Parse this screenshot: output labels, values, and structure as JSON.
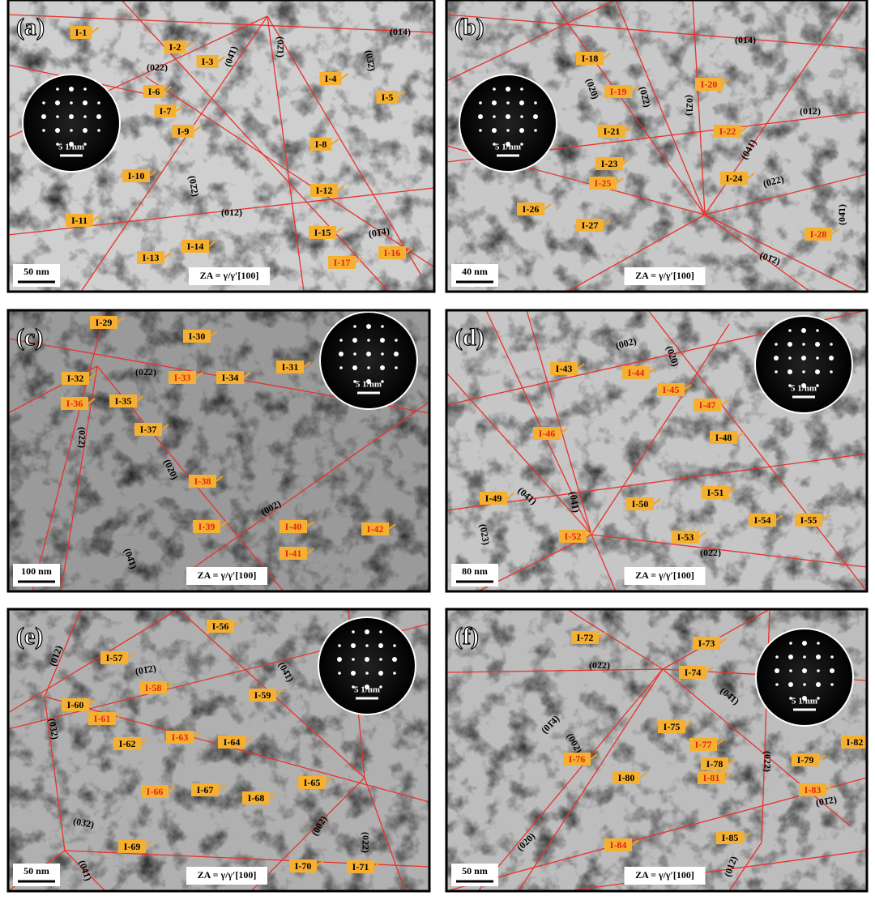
{
  "panels": [
    {
      "letter": "(a)",
      "labels": [
        "I-1",
        "I-2",
        "I-3",
        "I-4",
        "I-5",
        "I-6",
        "I-7",
        "I-8",
        "I-9",
        "I-10",
        "I-11",
        "I-12",
        "I-13",
        "I-14",
        "I-15",
        "I-16",
        "I-17"
      ],
      "planes": [
        "(01̄4)",
        "(022)",
        "(04̄1)",
        "(02̄1)",
        "(03̄2)",
        "(02̄2)",
        "(012)",
        "(01̄4)"
      ],
      "scale_bar": "50 nm",
      "zone_axis": "ZA = γ/γ′[100]",
      "diffraction_scale": "5 1/nm"
    },
    {
      "letter": "(b)",
      "labels": [
        "I-18",
        "I-19",
        "I-20",
        "I-21",
        "I-22",
        "I-23",
        "I-24",
        "I-25",
        "I-26",
        "I-27",
        "I-28"
      ],
      "planes": [
        "(01̄4)",
        "(020)",
        "(02̄2)",
        "(02̄1)",
        "(012)",
        "(041)",
        "(022)",
        "(04̄1)",
        "(01̄2)"
      ],
      "scale_bar": "40 nm",
      "zone_axis": "ZA = γ/γ′[100]",
      "diffraction_scale": "5 1/nm"
    },
    {
      "letter": "(c)",
      "labels": [
        "I-29",
        "I-30",
        "I-31",
        "I-32",
        "I-33",
        "I-34",
        "I-35",
        "I-36",
        "I-37",
        "I-38",
        "I-39",
        "I-40",
        "I-41",
        "I-42"
      ],
      "planes": [
        "(02̄2)",
        "(022)",
        "(020)",
        "(002)",
        "(04̄1)"
      ],
      "scale_bar": "100 nm",
      "zone_axis": "ZA = γ/γ′[100]",
      "diffraction_scale": "5 1/nm"
    },
    {
      "letter": "(d)",
      "labels": [
        "I-43",
        "I-44",
        "I-45",
        "I-46",
        "I-47",
        "I-48",
        "I-49",
        "I-50",
        "I-51",
        "I-52",
        "I-53",
        "I-54",
        "I-55"
      ],
      "planes": [
        "(002)",
        "(020)",
        "(04̄1)",
        "(041)",
        "(023)",
        "(02̄2)"
      ],
      "scale_bar": "80 nm",
      "zone_axis": "ZA = γ/γ′[100]",
      "diffraction_scale": "5 1/nm"
    },
    {
      "letter": "(e)",
      "labels": [
        "I-56",
        "I-57",
        "I-58",
        "I-59",
        "I-60",
        "I-61",
        "I-62",
        "I-63",
        "I-64",
        "I-65",
        "I-66",
        "I-67",
        "I-68",
        "I-69",
        "I-70",
        "I-71"
      ],
      "planes": [
        "(012)",
        "(01̄2)",
        "(04̄1)",
        "(032)",
        "(03̄2)",
        "(002)",
        "(022)",
        "(041)"
      ],
      "scale_bar": "50 nm",
      "zone_axis": "ZA = γ/γ′[100]",
      "diffraction_scale": "5 1/nm"
    },
    {
      "letter": "(f)",
      "labels": [
        "I-72",
        "I-73",
        "I-74",
        "I-75",
        "I-76",
        "I-77",
        "I-78",
        "I-79",
        "I-80",
        "I-81",
        "I-82",
        "I-83",
        "I-84",
        "I-85"
      ],
      "planes": [
        "(02̄2)",
        "(04̄1)",
        "(01̄4)",
        "(002)",
        "(022)",
        "(01̄2)",
        "(020)",
        "(012)"
      ],
      "scale_bar": "50 nm",
      "zone_axis": "ZA = γ/γ′[100]",
      "diffraction_scale": "5 1/nm"
    }
  ]
}
